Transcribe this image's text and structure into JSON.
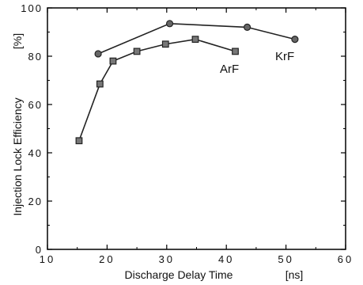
{
  "chart_data": {
    "type": "line",
    "xlabel": "Discharge Delay Time",
    "xunit": "[ns]",
    "ylabel": "Injection Lock Efficiency",
    "yunit": "[%]",
    "xlim": [
      10,
      60
    ],
    "ylim": [
      0,
      100
    ],
    "xticks": [
      10,
      20,
      30,
      40,
      50,
      60
    ],
    "yticks": [
      0,
      20,
      40,
      60,
      80,
      100
    ],
    "grid": false,
    "series": [
      {
        "name": "KrF",
        "marker": "circle",
        "x": [
          18.5,
          30.5,
          43.5,
          51.5
        ],
        "y": [
          81,
          93.5,
          92,
          87
        ]
      },
      {
        "name": "ArF",
        "marker": "square",
        "x": [
          15.3,
          18.8,
          21.0,
          25.0,
          29.8,
          34.8,
          41.5
        ],
        "y": [
          45,
          68.5,
          78,
          82,
          85,
          87,
          82
        ]
      }
    ]
  }
}
